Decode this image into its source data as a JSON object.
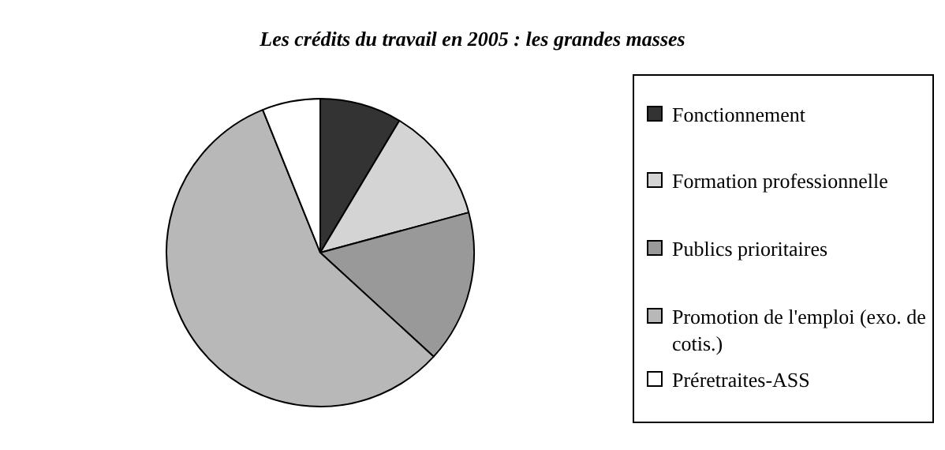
{
  "chart_data": {
    "type": "pie",
    "title": "Les crédits du travail en 2005 : les grandes masses",
    "categories": [
      "Fonctionnement",
      "Formation professionnelle",
      "Publics prioritaires",
      "Promotion de l'emploi (exo. de cotis.)",
      "Préretraites-ASS"
    ],
    "values": [
      8.6,
      12.2,
      16.0,
      57.1,
      6.1
    ],
    "colors": [
      "#333333",
      "#d4d4d4",
      "#999999",
      "#b8b8b8",
      "#ffffff"
    ],
    "legend": "right"
  }
}
